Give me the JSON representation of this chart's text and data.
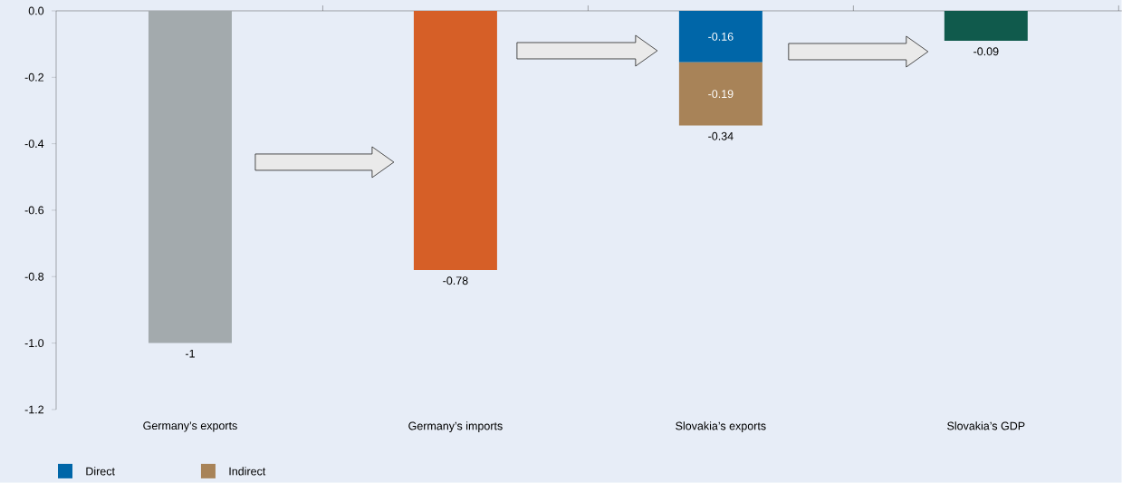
{
  "chart_data": {
    "type": "bar",
    "stacked": true,
    "categories": [
      "Germany’s exports",
      "Germany’s imports",
      "Slovakia’s exports",
      "Slovakia’s GDP"
    ],
    "series": [
      {
        "colors": [
          "#a3aaad",
          "#d65f27",
          null,
          "#105a4c"
        ],
        "values": [
          -1,
          -0.78,
          null,
          -0.09
        ],
        "value_labels": [
          "-1",
          "-0.78",
          null,
          "-0.09"
        ]
      },
      {
        "name": "Direct",
        "color": "#0066a8",
        "values": [
          null,
          null,
          -0.155,
          null
        ],
        "value_labels": [
          null,
          null,
          "-0.16",
          null
        ]
      },
      {
        "name": "Indirect",
        "color": "#a88358",
        "values": [
          null,
          null,
          -0.19,
          null
        ],
        "value_labels": [
          null,
          null,
          "-0.19",
          null
        ]
      }
    ],
    "totals": [
      null,
      null,
      "-0.34",
      null
    ],
    "ylim": [
      -1.2,
      0
    ],
    "yticks": [
      {
        "value": 0,
        "label": "0.0"
      },
      {
        "value": -0.2,
        "label": "-0.2"
      },
      {
        "value": -0.4,
        "label": "-0.4"
      },
      {
        "value": -0.6,
        "label": "-0.6"
      },
      {
        "value": -0.8,
        "label": "-0.8"
      },
      {
        "value": -1,
        "label": "-1.0"
      },
      {
        "value": -1.2,
        "label": "-1.2"
      }
    ],
    "grid": false,
    "legend": "bottom left"
  }
}
